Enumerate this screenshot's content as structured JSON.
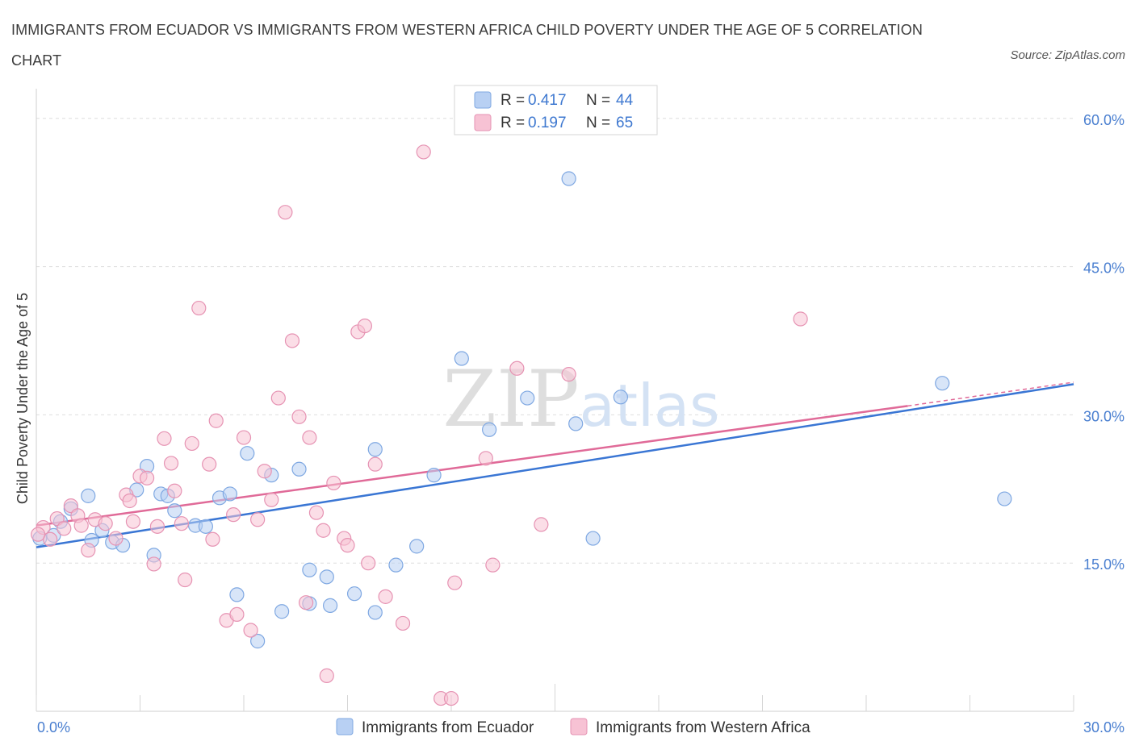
{
  "title": "IMMIGRANTS FROM ECUADOR VS IMMIGRANTS FROM WESTERN AFRICA CHILD POVERTY UNDER THE AGE OF 5 CORRELATION CHART",
  "source": "Source: ZipAtlas.com",
  "watermark": "ZIPatlas",
  "colors": {
    "blue": "#3a76d4",
    "blue_fill": "#b8d0f3",
    "pink": "#e06a98",
    "pink_fill": "#f7c2d4",
    "tick": "#4a7fd0"
  },
  "legend": {
    "rows": [
      {
        "r_label": "R =",
        "r_value": "0.417",
        "n_label": "N =",
        "n_value": "44"
      },
      {
        "r_label": "R =",
        "r_value": "0.197",
        "n_label": "N =",
        "n_value": "65"
      }
    ]
  },
  "chart_data": {
    "type": "scatter",
    "xlabel": "",
    "ylabel": "Child Poverty Under the Age of 5",
    "xlim": [
      0,
      30
    ],
    "ylim": [
      0,
      63
    ],
    "x_tick_labels": [
      "0.0%",
      "30.0%"
    ],
    "y_ticks": [
      15,
      30,
      45,
      60
    ],
    "y_tick_labels": [
      "15.0%",
      "30.0%",
      "45.0%",
      "60.0%"
    ],
    "grid": true,
    "legend_position": "top-center",
    "series": [
      {
        "name": "Immigrants from Ecuador",
        "color": "#3a76d4",
        "trend": {
          "x": [
            0,
            30
          ],
          "y": [
            16.6,
            33.1
          ]
        },
        "points": [
          [
            0.1,
            17.5
          ],
          [
            0.5,
            17.8
          ],
          [
            0.7,
            19.2
          ],
          [
            1.0,
            20.5
          ],
          [
            1.5,
            21.8
          ],
          [
            1.6,
            17.3
          ],
          [
            1.9,
            18.3
          ],
          [
            2.2,
            17.1
          ],
          [
            2.5,
            16.8
          ],
          [
            2.9,
            22.4
          ],
          [
            3.2,
            24.8
          ],
          [
            3.4,
            15.8
          ],
          [
            3.6,
            22.0
          ],
          [
            3.8,
            21.8
          ],
          [
            4.0,
            20.3
          ],
          [
            4.6,
            18.8
          ],
          [
            4.9,
            18.7
          ],
          [
            5.3,
            21.6
          ],
          [
            5.6,
            22.0
          ],
          [
            5.8,
            11.8
          ],
          [
            6.1,
            26.1
          ],
          [
            6.4,
            7.1
          ],
          [
            6.8,
            23.9
          ],
          [
            7.1,
            10.1
          ],
          [
            7.6,
            24.5
          ],
          [
            7.9,
            14.3
          ],
          [
            7.9,
            10.9
          ],
          [
            8.4,
            13.6
          ],
          [
            8.5,
            10.7
          ],
          [
            9.2,
            11.9
          ],
          [
            9.8,
            10.0
          ],
          [
            9.8,
            26.5
          ],
          [
            10.4,
            14.8
          ],
          [
            11.0,
            16.7
          ],
          [
            11.5,
            23.9
          ],
          [
            12.3,
            35.7
          ],
          [
            13.1,
            28.5
          ],
          [
            14.2,
            31.7
          ],
          [
            15.4,
            53.9
          ],
          [
            15.6,
            29.1
          ],
          [
            16.1,
            17.5
          ],
          [
            16.9,
            31.8
          ],
          [
            26.2,
            33.2
          ],
          [
            28.0,
            21.5
          ]
        ]
      },
      {
        "name": "Immigrants from Western Africa",
        "color": "#e06a98",
        "trend": {
          "x": [
            0,
            25.2
          ],
          "y": [
            18.8,
            30.9
          ]
        },
        "dash_extension": {
          "x": [
            25.2,
            30
          ],
          "y": [
            30.9,
            33.3
          ]
        },
        "points": [
          [
            0.2,
            18.6
          ],
          [
            0.4,
            17.4
          ],
          [
            0.6,
            19.5
          ],
          [
            0.8,
            18.5
          ],
          [
            1.0,
            20.8
          ],
          [
            1.2,
            19.8
          ],
          [
            1.3,
            18.8
          ],
          [
            1.5,
            16.3
          ],
          [
            1.7,
            19.4
          ],
          [
            2.0,
            19.0
          ],
          [
            2.3,
            17.5
          ],
          [
            2.6,
            21.9
          ],
          [
            2.7,
            21.3
          ],
          [
            2.8,
            19.2
          ],
          [
            3.0,
            23.8
          ],
          [
            3.2,
            23.6
          ],
          [
            3.4,
            14.9
          ],
          [
            3.5,
            18.7
          ],
          [
            3.7,
            27.6
          ],
          [
            3.9,
            25.1
          ],
          [
            4.0,
            22.3
          ],
          [
            4.2,
            19.0
          ],
          [
            4.3,
            13.3
          ],
          [
            4.5,
            27.1
          ],
          [
            4.7,
            40.8
          ],
          [
            5.0,
            25.0
          ],
          [
            5.1,
            17.4
          ],
          [
            5.2,
            29.4
          ],
          [
            5.5,
            9.2
          ],
          [
            5.7,
            19.9
          ],
          [
            5.8,
            9.8
          ],
          [
            6.0,
            27.7
          ],
          [
            6.2,
            8.2
          ],
          [
            6.4,
            19.4
          ],
          [
            6.6,
            24.3
          ],
          [
            6.8,
            21.4
          ],
          [
            7.0,
            31.7
          ],
          [
            7.2,
            50.5
          ],
          [
            7.4,
            37.5
          ],
          [
            7.6,
            29.8
          ],
          [
            7.8,
            11.0
          ],
          [
            7.9,
            27.7
          ],
          [
            8.1,
            20.1
          ],
          [
            8.3,
            18.3
          ],
          [
            8.4,
            3.6
          ],
          [
            8.6,
            23.1
          ],
          [
            8.9,
            17.5
          ],
          [
            9.0,
            16.8
          ],
          [
            9.3,
            38.4
          ],
          [
            9.5,
            39.0
          ],
          [
            9.6,
            15.0
          ],
          [
            9.8,
            25.0
          ],
          [
            10.1,
            11.6
          ],
          [
            10.6,
            8.9
          ],
          [
            11.2,
            56.6
          ],
          [
            11.7,
            1.3
          ],
          [
            12.0,
            1.3
          ],
          [
            12.1,
            13.0
          ],
          [
            13.0,
            25.6
          ],
          [
            13.2,
            14.8
          ],
          [
            13.9,
            34.7
          ],
          [
            14.6,
            18.9
          ],
          [
            15.4,
            34.1
          ],
          [
            22.1,
            39.7
          ],
          [
            0.05,
            17.9
          ]
        ]
      }
    ]
  }
}
